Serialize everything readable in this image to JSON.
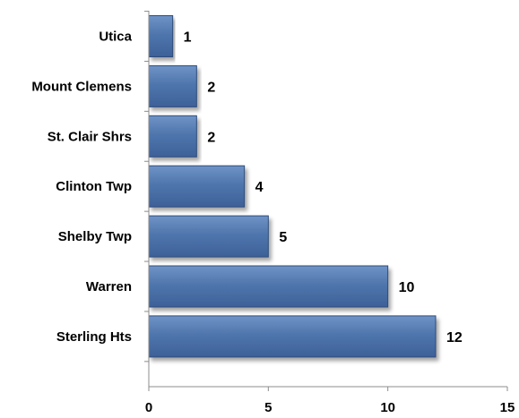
{
  "chart_data": {
    "type": "bar",
    "orientation": "horizontal",
    "categories": [
      "Utica",
      "Mount Clemens",
      "St. Clair Shrs",
      "Clinton Twp",
      "Shelby Twp",
      "Warren",
      "Sterling Hts"
    ],
    "values": [
      1,
      2,
      2,
      4,
      5,
      10,
      12
    ],
    "data_labels": [
      "1",
      "2",
      "2",
      "4",
      "5",
      "10",
      "12"
    ],
    "xlim": [
      0,
      15
    ],
    "x_ticks": [
      0,
      5,
      10,
      15
    ],
    "x_tick_labels": [
      "0",
      "5",
      "10",
      "15"
    ],
    "title": "",
    "xlabel": "",
    "ylabel": "",
    "grid": false,
    "legend": "none",
    "bar_color": "#4a6fa5",
    "bar_edge_color": "#2e4c7a"
  }
}
